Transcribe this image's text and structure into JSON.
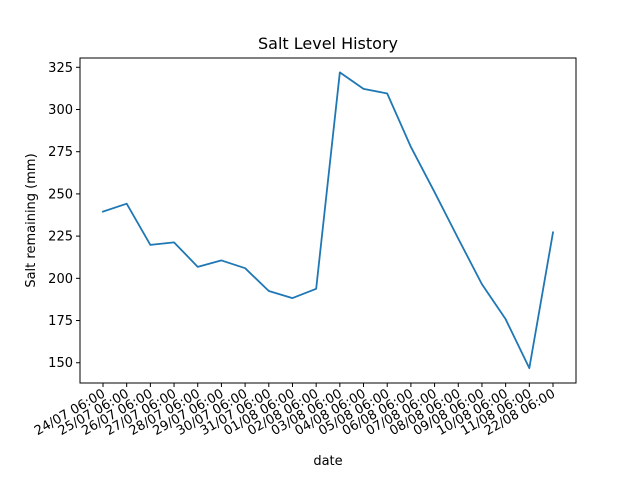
{
  "chart_data": {
    "type": "line",
    "title": "Salt Level History",
    "xlabel": "date",
    "ylabel": "Salt remaining (mm)",
    "categories": [
      "24/07 06:00",
      "25/07 06:00",
      "26/07 06:00",
      "27/07 06:00",
      "28/07 06:00",
      "29/07 06:00",
      "30/07 06:00",
      "31/07 06:00",
      "01/08 06:00",
      "02/08 06:00",
      "03/08 06:00",
      "04/08 06:00",
      "05/08 06:00",
      "06/08 06:00",
      "07/08 06:00",
      "08/08 06:00",
      "09/08 06:00",
      "10/08 06:00",
      "11/08 06:00",
      "22/08 06:00"
    ],
    "series": [
      {
        "values": [
          239.5,
          244.2,
          219.8,
          221.3,
          206.8,
          210.6,
          206.0,
          192.5,
          188.3,
          193.8,
          322.0,
          312.2,
          309.5,
          277.8,
          251.0,
          223.5,
          196.5,
          175.8,
          146.8,
          227.2
        ],
        "color": "#1f77b4"
      }
    ],
    "yticks": [
      150,
      175,
      200,
      225,
      250,
      275,
      300,
      325
    ],
    "ylim": [
      138.0,
      330.5
    ],
    "grid": false,
    "legend": false
  }
}
